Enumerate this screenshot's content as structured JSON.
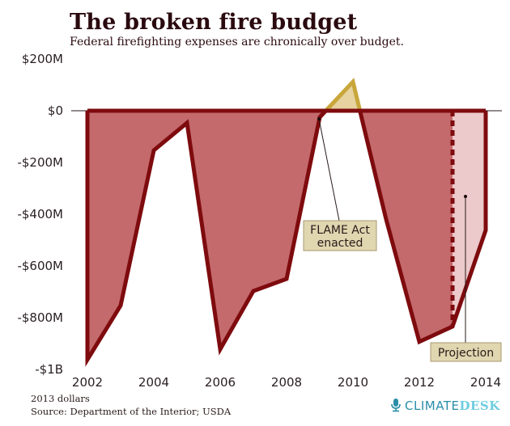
{
  "header": {
    "title": "The broken fire budget",
    "subtitle": "Federal firefighting expenses are chronically over budget."
  },
  "footer": {
    "note": "2013 dollars",
    "source": "Source: Department of the Interior; USDA",
    "brand_part1": "CLIMATE",
    "brand_part2": "DESK",
    "brand_icon": "microphone-icon"
  },
  "colors": {
    "overspend_fill": "#c46a6c",
    "overspend_line": "#7e0b0e",
    "surplus_fill": "#e6d3a0",
    "surplus_line": "#c9a63b",
    "projection_fill": "#ecc9ca",
    "annotation_bg": "#e0d6b0"
  },
  "chart_data": {
    "type": "area",
    "title": "The broken fire budget",
    "subtitle": "Federal firefighting expenses are chronically over budget.",
    "xlabel": "",
    "ylabel": "",
    "units": "2013 dollars, millions",
    "x": [
      2002,
      2003,
      2004,
      2005,
      2006,
      2007,
      2008,
      2009,
      2010,
      2011,
      2012,
      2013,
      2014
    ],
    "values": [
      -962,
      -753,
      -153,
      -47,
      -922,
      -697,
      -650,
      -25,
      112,
      -420,
      -893,
      -834,
      -462
    ],
    "projected_from": 2013,
    "xlim": [
      2002,
      2014
    ],
    "ylim": [
      -1000,
      200
    ],
    "yticks": [
      200,
      0,
      -200,
      -400,
      -600,
      -800,
      -1000
    ],
    "ytick_labels": [
      "$200M",
      "$0",
      "-$200M",
      "-$400M",
      "-$600M",
      "-$800M",
      "-$1B"
    ],
    "xticks": [
      2002,
      2004,
      2006,
      2008,
      2010,
      2012,
      2014
    ],
    "xtick_labels": [
      "2002",
      "2004",
      "2006",
      "2008",
      "2010",
      "2012",
      "2014"
    ],
    "grid": false,
    "legend": "none",
    "annotations": [
      {
        "label_line1": "FLAME Act",
        "label_line2": "enacted",
        "x": 2009,
        "y": -25
      },
      {
        "label_line1": "Projection",
        "label_line2": "",
        "x": 2013.4,
        "y": -600
      }
    ]
  }
}
